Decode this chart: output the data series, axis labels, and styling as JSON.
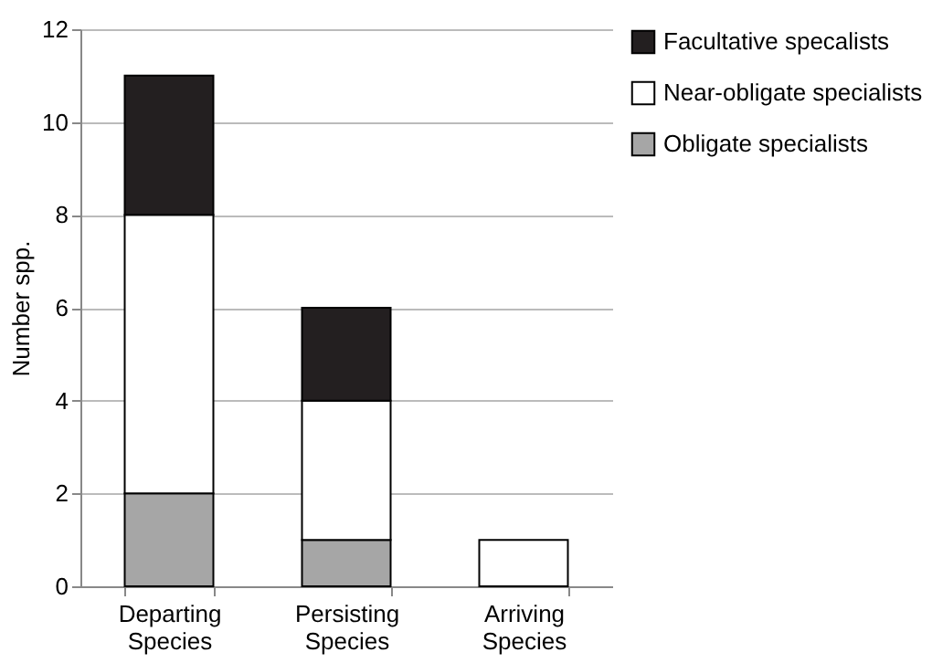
{
  "chart_data": {
    "type": "bar",
    "stacked": true,
    "ylabel": "Number spp.",
    "categories": [
      "Departing Species",
      "Persisting Species",
      "Arriving Species"
    ],
    "series": [
      {
        "name": "Obligate specialists",
        "color": "#a6a6a6",
        "values": [
          2,
          1,
          0
        ]
      },
      {
        "name": "Near-obligate specialists",
        "color": "#ffffff",
        "values": [
          6,
          3,
          1
        ]
      },
      {
        "name": "Facultative specalists",
        "color": "#231f20",
        "values": [
          3,
          2,
          0
        ]
      }
    ],
    "ylim": [
      0,
      12
    ],
    "yticks": [
      0,
      2,
      4,
      6,
      8,
      10,
      12
    ],
    "grid": "y",
    "legend": "right"
  }
}
